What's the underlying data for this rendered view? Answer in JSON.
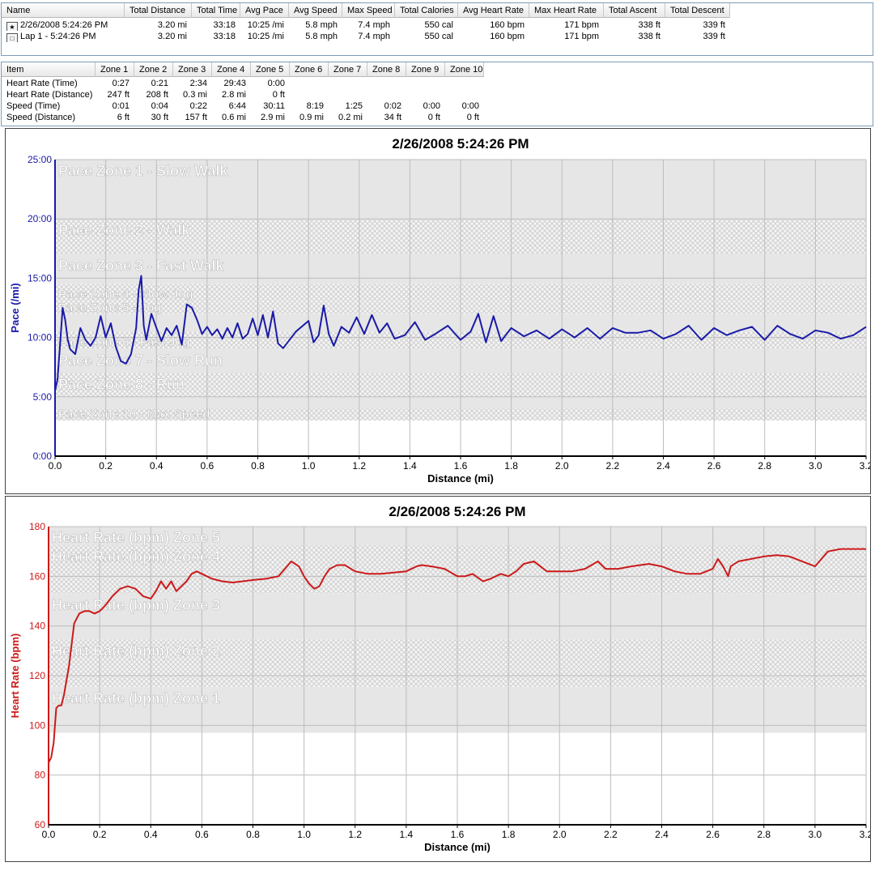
{
  "summary": {
    "columns": [
      "Name",
      "Total Distance",
      "Total Time",
      "Avg Pace",
      "Avg Speed",
      "Max Speed",
      "Total Calories",
      "Avg Heart Rate",
      "Max Heart Rate",
      "Total Ascent",
      "Total Descent"
    ],
    "rows": [
      {
        "icon": "run-activity-icon",
        "cells": [
          "2/26/2008 5:24:26 PM",
          "3.20 mi",
          "33:18",
          "10:25 /mi",
          "5.8 mph",
          "7.4 mph",
          "550 cal",
          "160 bpm",
          "171 bpm",
          "338 ft",
          "339 ft"
        ]
      },
      {
        "icon": "lap-icon",
        "cells": [
          "Lap 1 - 5:24:26 PM",
          "3.20 mi",
          "33:18",
          "10:25 /mi",
          "5.8 mph",
          "7.4 mph",
          "550 cal",
          "160 bpm",
          "171 bpm",
          "338 ft",
          "339 ft"
        ]
      }
    ]
  },
  "zones": {
    "columns": [
      "Item",
      "Zone 1",
      "Zone 2",
      "Zone 3",
      "Zone 4",
      "Zone 5",
      "Zone 6",
      "Zone 7",
      "Zone 8",
      "Zone 9",
      "Zone 10"
    ],
    "rows": [
      [
        "Heart Rate (Time)",
        "0:27",
        "0:21",
        "2:34",
        "29:43",
        "0:00",
        "",
        "",
        "",
        "",
        ""
      ],
      [
        "Heart Rate (Distance)",
        "247 ft",
        "208 ft",
        "0.3 mi",
        "2.8 mi",
        "0 ft",
        "",
        "",
        "",
        "",
        ""
      ],
      [
        "Speed (Time)",
        "0:01",
        "0:04",
        "0:22",
        "6:44",
        "30:11",
        "8:19",
        "1:25",
        "0:02",
        "0:00",
        "0:00"
      ],
      [
        "Speed (Distance)",
        "6 ft",
        "30 ft",
        "157 ft",
        "0.6 mi",
        "2.9 mi",
        "0.9 mi",
        "0.2 mi",
        "34 ft",
        "0 ft",
        "0 ft"
      ]
    ]
  },
  "chart_data": [
    {
      "type": "line",
      "title": "2/26/2008 5:24:26 PM",
      "xlabel": "Distance (mi)",
      "ylabel": "Pace (/mi)",
      "xlim": [
        0,
        3.2
      ],
      "ylim": [
        0,
        25
      ],
      "x_ticks": [
        "0.0",
        "0.2",
        "0.4",
        "0.6",
        "0.8",
        "1.0",
        "1.2",
        "1.4",
        "1.6",
        "1.8",
        "2.0",
        "2.2",
        "2.4",
        "2.6",
        "2.8",
        "3.0",
        "3.2"
      ],
      "y_ticks": [
        "0:00",
        "5:00",
        "10:00",
        "15:00",
        "20:00",
        "25:00"
      ],
      "line_color": "#1a1aa8",
      "zones": [
        {
          "label": "Pace Zone 1 - Slow Walk",
          "from": 20,
          "to": 25,
          "fill": "solid"
        },
        {
          "label": "Pace Zone 2 - Walk",
          "from": 17,
          "to": 20,
          "fill": "hatch"
        },
        {
          "label": "Pace Zone 3 - Fast Walk",
          "from": 14.5,
          "to": 17,
          "fill": "solid"
        },
        {
          "label": "Pace Zone 4 - Slow Jog",
          "from": 13,
          "to": 14.5,
          "fill": "hatch"
        },
        {
          "label": "Pace Zone 5 - Jog",
          "from": 12,
          "to": 13,
          "fill": "hatch"
        },
        {
          "label": "",
          "from": 10.5,
          "to": 12,
          "fill": "solid"
        },
        {
          "label": "Pace Zone 6 - Fast Jog",
          "from": 9,
          "to": 10.5,
          "fill": "hatch"
        },
        {
          "label": "Pace Zone 7 - Slow Run",
          "from": 7,
          "to": 9,
          "fill": "solid"
        },
        {
          "label": "Pace Zone 8 - Run",
          "from": 5,
          "to": 7,
          "fill": "hatch"
        },
        {
          "label": "",
          "from": 4,
          "to": 5,
          "fill": "solid"
        },
        {
          "label": "Pace Zone 10 - Max Speed",
          "from": 3,
          "to": 4,
          "fill": "hatch"
        }
      ],
      "x": [
        0.0,
        0.01,
        0.02,
        0.03,
        0.04,
        0.05,
        0.06,
        0.08,
        0.1,
        0.12,
        0.14,
        0.16,
        0.18,
        0.2,
        0.22,
        0.24,
        0.26,
        0.28,
        0.3,
        0.32,
        0.33,
        0.34,
        0.35,
        0.36,
        0.38,
        0.4,
        0.42,
        0.44,
        0.46,
        0.48,
        0.5,
        0.52,
        0.54,
        0.56,
        0.58,
        0.6,
        0.62,
        0.64,
        0.66,
        0.68,
        0.7,
        0.72,
        0.74,
        0.76,
        0.78,
        0.8,
        0.82,
        0.84,
        0.86,
        0.88,
        0.9,
        0.95,
        1.0,
        1.02,
        1.04,
        1.06,
        1.08,
        1.1,
        1.13,
        1.16,
        1.19,
        1.22,
        1.25,
        1.28,
        1.31,
        1.34,
        1.38,
        1.42,
        1.46,
        1.5,
        1.55,
        1.6,
        1.64,
        1.67,
        1.7,
        1.73,
        1.76,
        1.8,
        1.85,
        1.9,
        1.95,
        2.0,
        2.05,
        2.1,
        2.15,
        2.2,
        2.25,
        2.3,
        2.35,
        2.4,
        2.45,
        2.5,
        2.55,
        2.6,
        2.65,
        2.7,
        2.75,
        2.8,
        2.85,
        2.9,
        2.95,
        3.0,
        3.05,
        3.1,
        3.15,
        3.2
      ],
      "y": [
        5.5,
        6.5,
        9.5,
        12.5,
        11.5,
        9.8,
        9.0,
        8.6,
        10.8,
        9.8,
        9.3,
        10.0,
        11.8,
        10.0,
        11.2,
        9.2,
        8.0,
        7.8,
        8.6,
        10.8,
        14.0,
        15.2,
        11.0,
        9.8,
        12.0,
        10.8,
        9.7,
        10.8,
        10.2,
        11.0,
        9.4,
        12.8,
        12.5,
        11.5,
        10.3,
        10.9,
        10.2,
        10.7,
        9.9,
        10.8,
        10.0,
        11.2,
        9.9,
        10.3,
        11.6,
        10.2,
        11.9,
        10.0,
        12.2,
        9.5,
        9.1,
        10.5,
        11.4,
        9.6,
        10.2,
        12.7,
        10.3,
        9.3,
        10.9,
        10.4,
        11.7,
        10.3,
        11.9,
        10.4,
        11.2,
        9.9,
        10.2,
        11.3,
        9.8,
        10.3,
        11.0,
        9.8,
        10.5,
        12.0,
        9.6,
        11.8,
        9.7,
        10.8,
        10.1,
        10.6,
        9.9,
        10.7,
        10.0,
        10.8,
        9.9,
        10.8,
        10.4,
        10.4,
        10.6,
        9.9,
        10.3,
        11.0,
        9.8,
        10.8,
        10.2,
        10.6,
        10.9,
        9.8,
        11.0,
        10.3,
        9.9,
        10.6,
        10.4,
        9.9,
        10.2,
        10.9
      ]
    },
    {
      "type": "line",
      "title": "2/26/2008 5:24:26 PM",
      "xlabel": "Distance (mi)",
      "ylabel": "Heart Rate (bpm)",
      "xlim": [
        0,
        3.2
      ],
      "ylim": [
        60,
        180
      ],
      "x_ticks": [
        "0.0",
        "0.2",
        "0.4",
        "0.6",
        "0.8",
        "1.0",
        "1.2",
        "1.4",
        "1.6",
        "1.8",
        "2.0",
        "2.2",
        "2.4",
        "2.6",
        "2.8",
        "3.0",
        "3.2"
      ],
      "y_ticks": [
        "60",
        "80",
        "100",
        "120",
        "140",
        "160",
        "180"
      ],
      "line_color": "#cc1a1a",
      "zones": [
        {
          "label": "Heart Rate (bpm) Zone 5",
          "from": 172.5,
          "to": 180,
          "fill": "solid"
        },
        {
          "label": "Heart Rate (bpm) Zone 4",
          "from": 153,
          "to": 172.5,
          "fill": "hatch"
        },
        {
          "label": "Heart Rate (bpm) Zone 3",
          "from": 134.5,
          "to": 153,
          "fill": "solid"
        },
        {
          "label": "Heart Rate (bpm) Zone 2",
          "from": 115.5,
          "to": 134.5,
          "fill": "hatch"
        },
        {
          "label": "Heart Rate (bpm) Zone 1",
          "from": 97,
          "to": 115.5,
          "fill": "solid"
        }
      ],
      "x": [
        0.0,
        0.01,
        0.02,
        0.03,
        0.04,
        0.05,
        0.06,
        0.08,
        0.1,
        0.12,
        0.14,
        0.16,
        0.18,
        0.2,
        0.22,
        0.25,
        0.28,
        0.31,
        0.34,
        0.37,
        0.4,
        0.42,
        0.44,
        0.46,
        0.48,
        0.5,
        0.52,
        0.54,
        0.56,
        0.58,
        0.6,
        0.64,
        0.68,
        0.72,
        0.76,
        0.8,
        0.85,
        0.9,
        0.95,
        0.98,
        1.0,
        1.02,
        1.04,
        1.06,
        1.08,
        1.1,
        1.13,
        1.16,
        1.2,
        1.25,
        1.3,
        1.35,
        1.4,
        1.44,
        1.46,
        1.5,
        1.55,
        1.6,
        1.63,
        1.66,
        1.7,
        1.73,
        1.77,
        1.8,
        1.83,
        1.86,
        1.9,
        1.95,
        2.0,
        2.05,
        2.1,
        2.15,
        2.18,
        2.2,
        2.23,
        2.28,
        2.35,
        2.4,
        2.45,
        2.5,
        2.55,
        2.6,
        2.62,
        2.64,
        2.66,
        2.67,
        2.7,
        2.75,
        2.8,
        2.85,
        2.9,
        2.95,
        3.0,
        3.05,
        3.1,
        3.15,
        3.2
      ],
      "y": [
        85,
        87,
        93,
        107,
        108,
        108,
        112,
        124,
        141,
        145,
        146,
        146,
        145,
        146,
        148,
        152,
        155,
        156,
        155,
        152,
        151,
        154,
        158,
        155,
        158,
        154,
        156,
        158,
        161,
        162,
        161,
        159,
        158,
        157.5,
        158,
        158.5,
        159,
        160,
        166,
        164,
        160,
        157,
        155,
        156,
        160,
        163,
        164.5,
        164.5,
        162,
        161,
        161,
        161.5,
        162,
        164,
        164.5,
        164,
        163,
        160,
        160,
        161,
        158,
        159,
        161,
        160,
        162,
        165,
        166,
        162,
        162,
        162,
        163,
        166,
        163,
        163,
        163,
        164,
        165,
        164,
        162,
        161,
        161,
        163,
        167,
        164,
        160,
        164,
        166,
        167,
        168,
        168.5,
        168,
        166,
        164,
        170,
        171,
        171,
        171
      ]
    }
  ]
}
